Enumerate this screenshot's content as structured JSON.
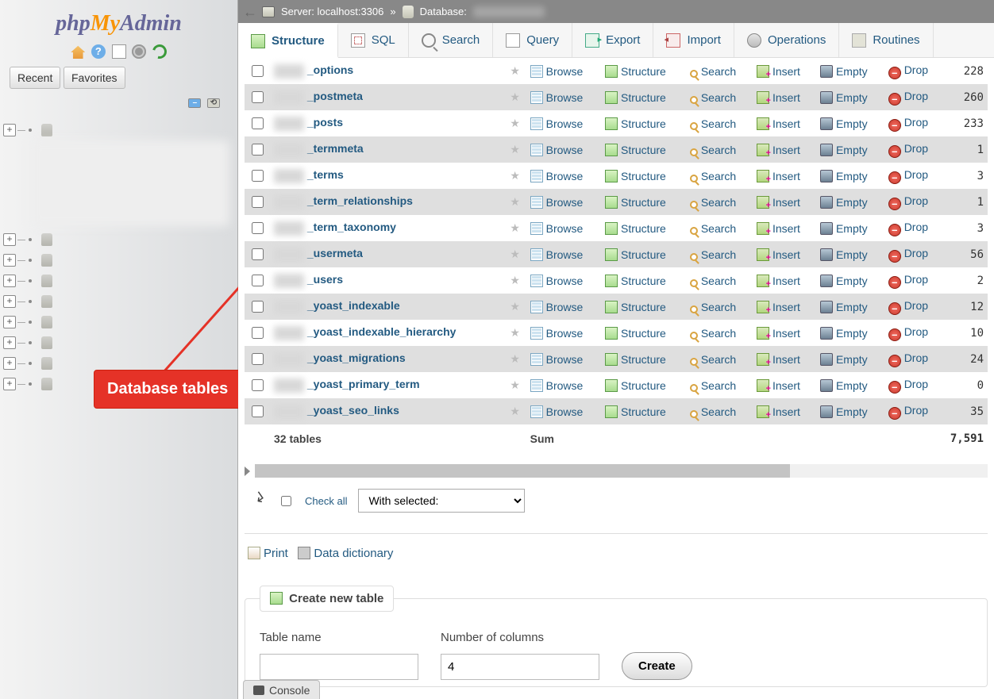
{
  "logo": {
    "p1": "php",
    "p2": "My",
    "p3": "Admin"
  },
  "nav_icons": {
    "help_glyph": "?"
  },
  "sidebar_tabs": {
    "recent": "Recent",
    "favorites": "Favorites"
  },
  "tree_nodes": 9,
  "breadcrumb": {
    "server_label": "Server:",
    "server_value": "localhost:3306",
    "sep": "»",
    "db_label": "Database:"
  },
  "tabs": [
    {
      "key": "structure",
      "label": "Structure",
      "icon": "ti-struct",
      "active": true
    },
    {
      "key": "sql",
      "label": "SQL",
      "icon": "ti-sql"
    },
    {
      "key": "search",
      "label": "Search",
      "icon": "ti-search"
    },
    {
      "key": "query",
      "label": "Query",
      "icon": "ti-query"
    },
    {
      "key": "export",
      "label": "Export",
      "icon": "ti-export"
    },
    {
      "key": "import",
      "label": "Import",
      "icon": "ti-import"
    },
    {
      "key": "operations",
      "label": "Operations",
      "icon": "ti-ops"
    },
    {
      "key": "routines",
      "label": "Routines",
      "icon": "ti-rout"
    }
  ],
  "actions": {
    "browse": "Browse",
    "structure": "Structure",
    "search": "Search",
    "insert": "Insert",
    "empty": "Empty",
    "drop": "Drop"
  },
  "tables": [
    {
      "name": "_options",
      "rows": "228"
    },
    {
      "name": "_postmeta",
      "rows": "260"
    },
    {
      "name": "_posts",
      "rows": "233"
    },
    {
      "name": "_termmeta",
      "rows": "1"
    },
    {
      "name": "_terms",
      "rows": "3"
    },
    {
      "name": "_term_relationships",
      "rows": "1"
    },
    {
      "name": "_term_taxonomy",
      "rows": "3"
    },
    {
      "name": "_usermeta",
      "rows": "56"
    },
    {
      "name": "_users",
      "rows": "2"
    },
    {
      "name": "_yoast_indexable",
      "rows": "12"
    },
    {
      "name": "_yoast_indexable_hierarchy",
      "rows": "10"
    },
    {
      "name": "_yoast_migrations",
      "rows": "24"
    },
    {
      "name": "_yoast_primary_term",
      "rows": "0"
    },
    {
      "name": "_yoast_seo_links",
      "rows": "35"
    }
  ],
  "summary": {
    "tables": "32 tables",
    "sum_label": "Sum",
    "total": "7,591"
  },
  "checkall": {
    "label": "Check all",
    "select_placeholder": "With selected:"
  },
  "links": {
    "print": "Print",
    "dict": "Data dictionary"
  },
  "create": {
    "legend": "Create new table",
    "name_label": "Table name",
    "cols_label": "Number of columns",
    "cols_value": "4",
    "button": "Create"
  },
  "console": "Console",
  "annotation": "Database tables",
  "drop_glyph": "–",
  "colors": {
    "link": "#235a81",
    "row_alt": "#dfdfdf",
    "anno": "#e53227"
  }
}
